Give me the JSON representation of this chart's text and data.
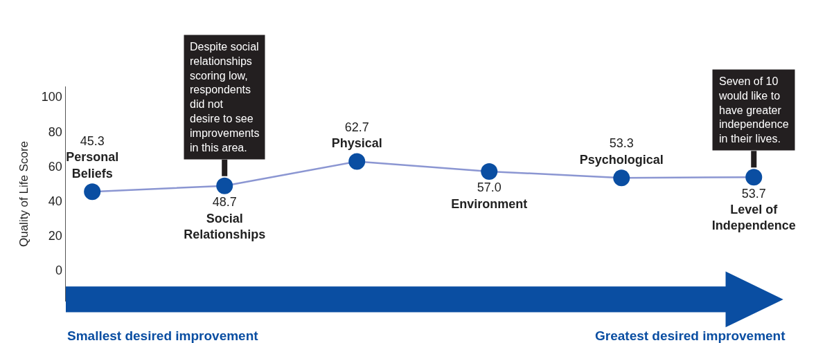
{
  "chart_data": {
    "type": "line",
    "ylabel": "Quality of Life Score",
    "categories": [
      "Personal Beliefs",
      "Social Relationships",
      "Physical",
      "Environment",
      "Psychological",
      "Level of Independence"
    ],
    "series": [
      {
        "color": "#0a4ea2",
        "values": [
          45.3,
          48.7,
          62.7,
          57.0,
          53.3,
          53.7
        ],
        "value_labels": [
          "45.3",
          "48.7",
          "62.7",
          "57.0",
          "53.3",
          "53.7"
        ]
      }
    ],
    "ylim": [
      -18,
      106
    ],
    "yticks": [
      0,
      20,
      40,
      60,
      80,
      100
    ],
    "legend": false,
    "marker": "circle",
    "line_style": "solid",
    "annotations": [
      {
        "text": "Despite social\nrelationships\nscoring low,\nrespondents\ndid not\ndesire to see\nimprovements\nin this area.",
        "x": "Social Relationships",
        "y": 48.7
      },
      {
        "text": "Seven of 10\nwould like to\nhave greater\nindependence\nin their lives.",
        "x": "Level of Independence",
        "y": 53.7
      },
      "Smallest desired improvement",
      "Greatest desired improvement"
    ]
  }
}
